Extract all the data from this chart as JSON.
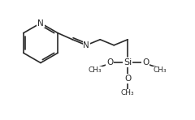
{
  "bg_color": "#ffffff",
  "line_color": "#2a2a2a",
  "line_width": 1.2,
  "font_size": 7.0,
  "font_color": "#2a2a2a",
  "figsize": [
    2.4,
    1.48
  ],
  "dpi": 100,
  "xlim": [
    0.0,
    2.4
  ],
  "ylim": [
    0.0,
    1.48
  ]
}
